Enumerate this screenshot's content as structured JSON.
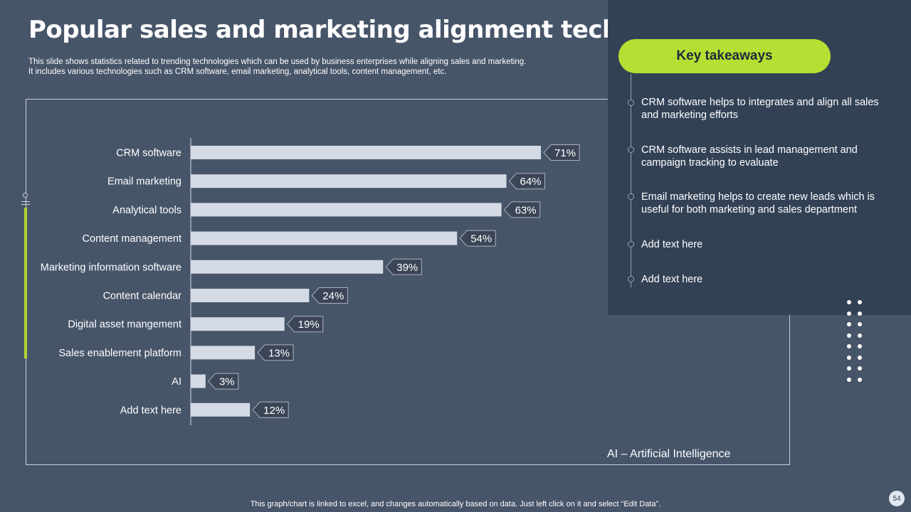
{
  "title": "Popular sales and marketing alignment technologies",
  "subtitle_line1": "This slide shows statistics related to trending technologies which can be used by business enterprises while aligning sales and marketing.",
  "subtitle_line2": "It includes various technologies such as CRM software, email marketing, analytical tools, content management, etc.",
  "chart_data": {
    "type": "bar",
    "orientation": "horizontal",
    "categories": [
      "CRM software",
      "Email marketing",
      "Analytical tools",
      "Content management",
      "Marketing information software",
      "Content calendar",
      "Digital asset mangement",
      "Sales enablement platform",
      "AI",
      "Add text here"
    ],
    "values": [
      71,
      64,
      63,
      54,
      39,
      24,
      19,
      13,
      3,
      12
    ],
    "labels": [
      "71%",
      "64%",
      "63%",
      "54%",
      "39%",
      "24%",
      "19%",
      "13%",
      "3%",
      "12%"
    ],
    "unit": "%",
    "xlim": [
      0,
      100
    ],
    "bar_color": "#d5dbe5",
    "title": "",
    "xlabel": "",
    "ylabel": ""
  },
  "note": "AI – Artificial Intelligence",
  "takeaways": {
    "heading": "Key takeaways",
    "items": [
      "CRM software helps to  integrates and align  all sales and marketing efforts",
      "CRM software assists in lead management and campaign tracking to evaluate",
      "Email marketing helps to create new leads which is useful for both marketing and sales department",
      "Add text here",
      "Add text here"
    ]
  },
  "footer": "This graph/chart is linked to excel,  and changes automatically based on data. Just left click on it and select “Edit Data”.",
  "page_number": "54",
  "colors": {
    "background": "#475569",
    "panel": "#334155",
    "accent": "#b5e033"
  }
}
